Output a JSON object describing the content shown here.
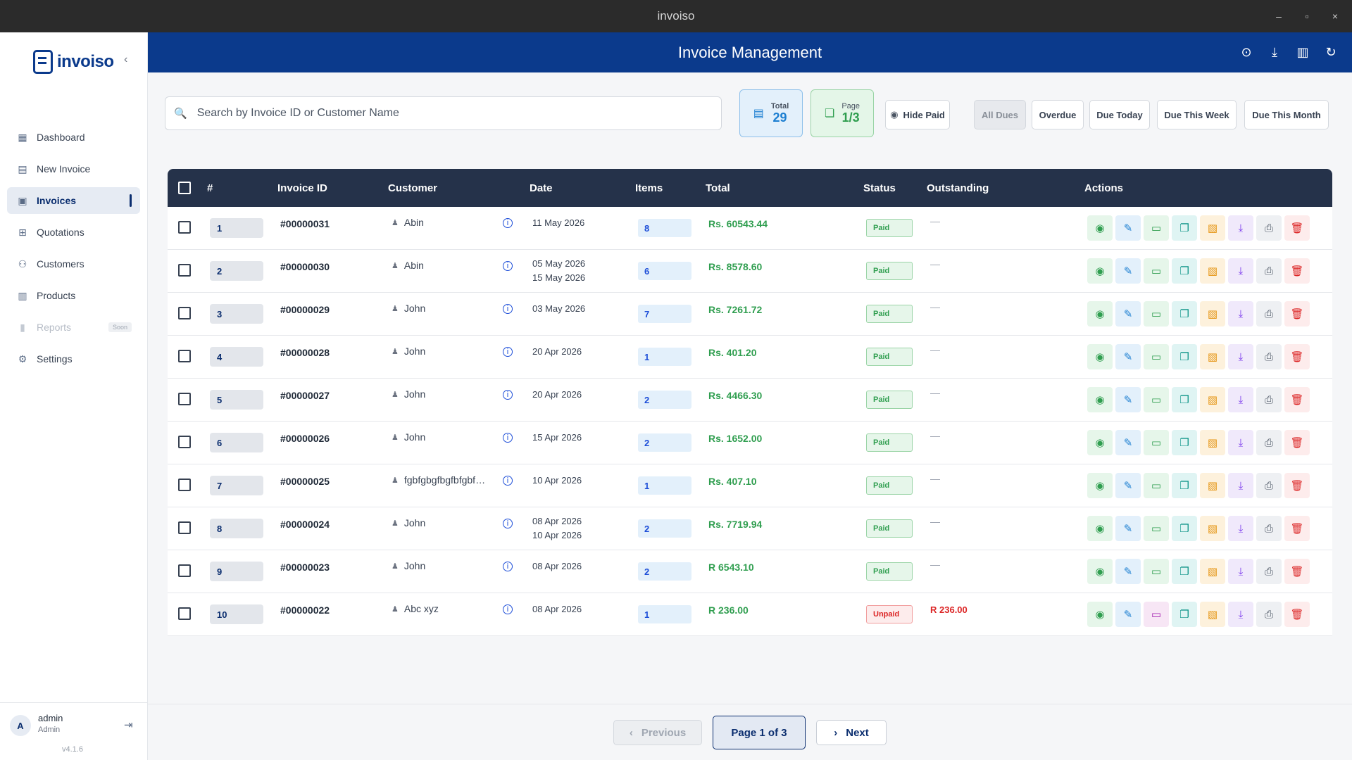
{
  "window": {
    "title": "invoiso",
    "minimize": "–",
    "maximize": "▫",
    "close": "×"
  },
  "sidebar": {
    "logo_text": "invoiso",
    "collapse_icon": "‹",
    "items": [
      {
        "label": "Dashboard",
        "icon": "▦"
      },
      {
        "label": "New Invoice",
        "icon": "▤"
      },
      {
        "label": "Invoices",
        "icon": "▣"
      },
      {
        "label": "Quotations",
        "icon": "⊞"
      },
      {
        "label": "Customers",
        "icon": "⚇"
      },
      {
        "label": "Products",
        "icon": "▥"
      },
      {
        "label": "Reports",
        "icon": "▮",
        "badge": "Soon"
      },
      {
        "label": "Settings",
        "icon": "⚙"
      }
    ],
    "user": {
      "initial": "A",
      "name": "admin",
      "role": "Admin",
      "logout_icon": "⇥"
    },
    "version": "v4.1.6"
  },
  "header": {
    "title": "Invoice Management",
    "icons": [
      "⊙",
      "⤓",
      "▥",
      "↻"
    ]
  },
  "toolbar": {
    "search_placeholder": "Search by Invoice ID or Customer Name",
    "total_label": "Total",
    "total_value": "29",
    "page_label": "Page",
    "page_value": "1/3",
    "hide_paid": "Hide Paid",
    "filters": [
      "All Dues",
      "Overdue",
      "Due Today",
      "Due This Week",
      "Due This Month"
    ]
  },
  "table": {
    "headers": [
      "#",
      "Invoice ID",
      "Customer",
      "Date",
      "Items",
      "Total",
      "Status",
      "Outstanding",
      "Actions"
    ],
    "rows": [
      {
        "num": "1",
        "id": "#00000031",
        "customer": "Abin",
        "date": "11 May 2026",
        "date2": "",
        "items": "8",
        "total": "Rs. 60543.44",
        "status": "Paid",
        "outstanding": "—"
      },
      {
        "num": "2",
        "id": "#00000030",
        "customer": "Abin",
        "date": "05 May 2026",
        "date2": "15 May 2026",
        "items": "6",
        "total": "Rs. 8578.60",
        "status": "Paid",
        "outstanding": "—"
      },
      {
        "num": "3",
        "id": "#00000029",
        "customer": "John",
        "date": "03 May 2026",
        "date2": "",
        "items": "7",
        "total": "Rs. 7261.72",
        "status": "Paid",
        "outstanding": "—"
      },
      {
        "num": "4",
        "id": "#00000028",
        "customer": "John",
        "date": "20 Apr 2026",
        "date2": "",
        "items": "1",
        "total": "Rs. 401.20",
        "status": "Paid",
        "outstanding": "—"
      },
      {
        "num": "5",
        "id": "#00000027",
        "customer": "John",
        "date": "20 Apr 2026",
        "date2": "",
        "items": "2",
        "total": "Rs. 4466.30",
        "status": "Paid",
        "outstanding": "—"
      },
      {
        "num": "6",
        "id": "#00000026",
        "customer": "John",
        "date": "15 Apr 2026",
        "date2": "",
        "items": "2",
        "total": "Rs. 1652.00",
        "status": "Paid",
        "outstanding": "—"
      },
      {
        "num": "7",
        "id": "#00000025",
        "customer": "fgbfgbgfbgfbfgbf…",
        "date": "10 Apr 2026",
        "date2": "",
        "items": "1",
        "total": "Rs. 407.10",
        "status": "Paid",
        "outstanding": "—"
      },
      {
        "num": "8",
        "id": "#00000024",
        "customer": "John",
        "date": "08 Apr 2026",
        "date2": "10 Apr 2026",
        "items": "2",
        "total": "Rs. 7719.94",
        "status": "Paid",
        "outstanding": "—"
      },
      {
        "num": "9",
        "id": "#00000023",
        "customer": "John",
        "date": "08 Apr 2026",
        "date2": "",
        "items": "2",
        "total": "R 6543.10",
        "status": "Paid",
        "outstanding": "—"
      },
      {
        "num": "10",
        "id": "#00000022",
        "customer": "Abc xyz",
        "date": "08 Apr 2026",
        "date2": "",
        "items": "1",
        "total": "R 236.00",
        "status": "Unpaid",
        "outstanding": "R 236.00"
      }
    ]
  },
  "pagination": {
    "previous": "Previous",
    "current": "Page 1 of 3",
    "next": "Next"
  }
}
